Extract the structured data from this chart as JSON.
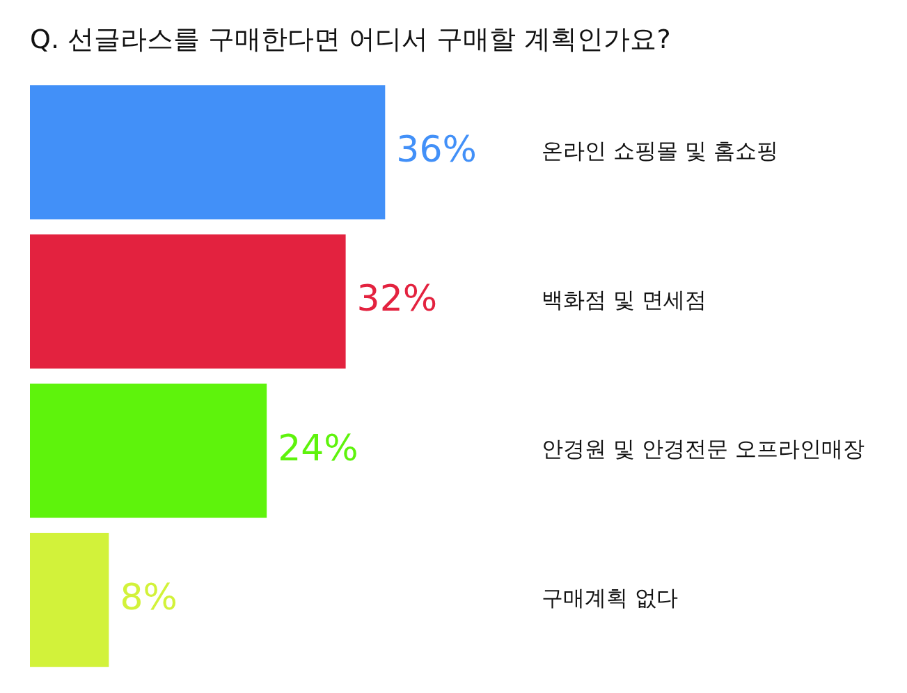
{
  "chart_data": {
    "type": "bar",
    "orientation": "horizontal",
    "title": "Q. 선글라스를 구매한다면 어디서 구매할 계획인가요?",
    "categories": [
      "온라인 쇼핑몰 및 홈쇼핑",
      "백화점 및 면세점",
      "안경원 및 안경전문 오프라인매장",
      "구매계획 없다"
    ],
    "values": [
      36,
      32,
      24,
      8
    ],
    "value_labels": [
      "36%",
      "32%",
      "24%",
      "8%"
    ],
    "colors": [
      "#4290f8",
      "#e3223f",
      "#5ef30c",
      "#d2f23a"
    ],
    "tick_labels": "y",
    "grid": false,
    "legend": false
  }
}
